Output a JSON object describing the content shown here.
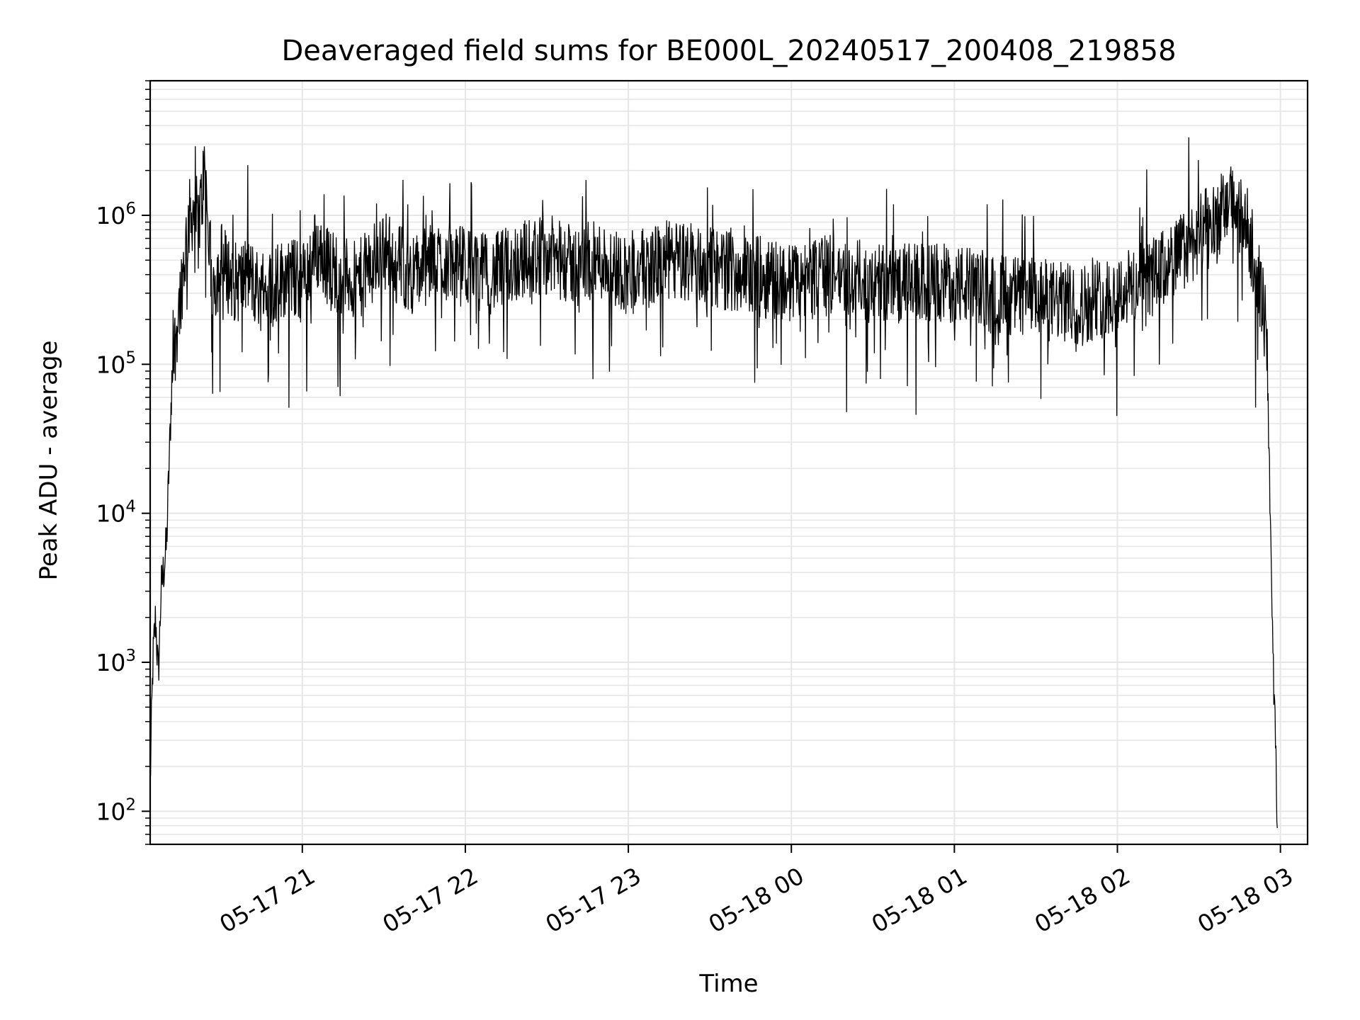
{
  "chart_data": {
    "type": "line",
    "title": "Deaveraged field sums for BE000L_20240517_200408_219858",
    "xlabel": "Time",
    "ylabel": "Peak ADU - average",
    "yscale": "log",
    "ylim": [
      60,
      8000000
    ],
    "xlim": [
      "2024-05-17 20:04",
      "2024-05-18 03:10"
    ],
    "grid": true,
    "legend": "none",
    "line_color": "#000000",
    "x_ticks": [
      {
        "value": "2024-05-17 21:00",
        "label": "05-17 21"
      },
      {
        "value": "2024-05-17 22:00",
        "label": "05-17 22"
      },
      {
        "value": "2024-05-17 23:00",
        "label": "05-17 23"
      },
      {
        "value": "2024-05-18 00:00",
        "label": "05-18 00"
      },
      {
        "value": "2024-05-18 01:00",
        "label": "05-18 01"
      },
      {
        "value": "2024-05-18 02:00",
        "label": "05-18 02"
      },
      {
        "value": "2024-05-18 03:00",
        "label": "05-18 03"
      }
    ],
    "y_ticks": [
      {
        "value": 100,
        "base": "10",
        "exp": "2"
      },
      {
        "value": 1000,
        "base": "10",
        "exp": "3"
      },
      {
        "value": 10000,
        "base": "10",
        "exp": "4"
      },
      {
        "value": 100000,
        "base": "10",
        "exp": "5"
      },
      {
        "value": 1000000,
        "base": "10",
        "exp": "6"
      }
    ],
    "series": [
      {
        "x": [
          "2024-05-17 20:04",
          "2024-05-17 20:05",
          "2024-05-17 20:06",
          "2024-05-17 20:07",
          "2024-05-17 20:08",
          "2024-05-17 20:10",
          "2024-05-17 20:12",
          "2024-05-17 20:14",
          "2024-05-17 20:16",
          "2024-05-17 20:18",
          "2024-05-17 20:20",
          "2024-05-17 20:22",
          "2024-05-17 20:24",
          "2024-05-17 20:27",
          "2024-05-17 20:30",
          "2024-05-17 20:33",
          "2024-05-17 20:36",
          "2024-05-17 20:40",
          "2024-05-17 20:45",
          "2024-05-17 20:50",
          "2024-05-17 20:55",
          "2024-05-17 21:00",
          "2024-05-17 21:05",
          "2024-05-17 21:10",
          "2024-05-17 21:15",
          "2024-05-17 21:20",
          "2024-05-17 21:30",
          "2024-05-17 21:40",
          "2024-05-17 21:50",
          "2024-05-17 22:00",
          "2024-05-17 22:10",
          "2024-05-17 22:20",
          "2024-05-17 22:30",
          "2024-05-17 22:40",
          "2024-05-17 22:50",
          "2024-05-17 23:00",
          "2024-05-17 23:15",
          "2024-05-17 23:30",
          "2024-05-17 23:45",
          "2024-05-18 00:00",
          "2024-05-18 00:15",
          "2024-05-18 00:30",
          "2024-05-18 00:45",
          "2024-05-18 01:00",
          "2024-05-18 01:15",
          "2024-05-18 01:30",
          "2024-05-18 01:45",
          "2024-05-18 02:00",
          "2024-05-18 02:15",
          "2024-05-18 02:25",
          "2024-05-18 02:35",
          "2024-05-18 02:42",
          "2024-05-18 02:48",
          "2024-05-18 02:53",
          "2024-05-18 02:55",
          "2024-05-18 02:56",
          "2024-05-18 02:57",
          "2024-05-18 02:58",
          "2024-05-18 02:59"
        ],
        "y": [
          150,
          1000,
          2000,
          800,
          3000,
          6000,
          80000,
          200000,
          400000,
          900000,
          1100000,
          900000,
          2000000,
          300000,
          500000,
          400000,
          350000,
          400000,
          300000,
          350000,
          400000,
          350000,
          600000,
          450000,
          400000,
          350000,
          600000,
          400000,
          500000,
          450000,
          400000,
          500000,
          550000,
          450000,
          500000,
          400000,
          500000,
          450000,
          400000,
          350000,
          400000,
          350000,
          350000,
          350000,
          300000,
          280000,
          250000,
          300000,
          400000,
          600000,
          900000,
          1200000,
          800000,
          300000,
          150000,
          20000,
          1500,
          400,
          60
        ]
      }
    ]
  }
}
